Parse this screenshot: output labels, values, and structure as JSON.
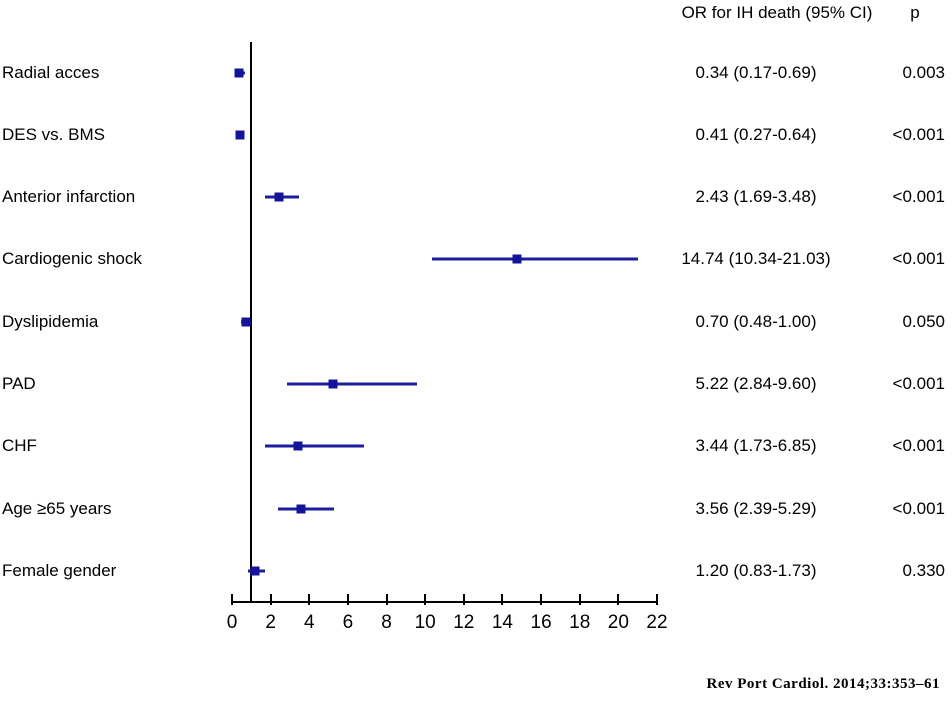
{
  "header": {
    "or_col": "OR for IH death (95% CI)",
    "p_col": "p"
  },
  "footer": {
    "citation": "Rev Port Cardiol. 2014;33:353–61"
  },
  "colors": {
    "ci_line": "#1c1c9e",
    "marker": "#14149b",
    "axis": "#000000"
  },
  "chart_data": {
    "type": "forest",
    "title": "OR for IH death (95% CI)",
    "xlabel": "",
    "xlim": [
      0,
      22
    ],
    "x_ticks": [
      0,
      2,
      4,
      6,
      8,
      10,
      12,
      14,
      16,
      18,
      20,
      22
    ],
    "reference_line": 1,
    "rows": [
      {
        "label": "Radial acces",
        "or": 0.34,
        "ci_low": 0.17,
        "ci_high": 0.69,
        "or_text": "0.34 (0.17-0.69)",
        "p": "0.003"
      },
      {
        "label": "DES vs. BMS",
        "or": 0.41,
        "ci_low": 0.27,
        "ci_high": 0.64,
        "or_text": "0.41 (0.27-0.64)",
        "p": "<0.001"
      },
      {
        "label": "Anterior infarction",
        "or": 2.43,
        "ci_low": 1.69,
        "ci_high": 3.48,
        "or_text": "2.43 (1.69-3.48)",
        "p": "<0.001"
      },
      {
        "label": "Cardiogenic shock",
        "or": 14.74,
        "ci_low": 10.34,
        "ci_high": 21.03,
        "or_text": "14.74 (10.34-21.03)",
        "p": "<0.001"
      },
      {
        "label": "Dyslipidemia",
        "or": 0.7,
        "ci_low": 0.48,
        "ci_high": 1.0,
        "or_text": "0.70 (0.48-1.00)",
        "p": "0.050"
      },
      {
        "label": "PAD",
        "or": 5.22,
        "ci_low": 2.84,
        "ci_high": 9.6,
        "or_text": "5.22 (2.84-9.60)",
        "p": "<0.001"
      },
      {
        "label": "CHF",
        "or": 3.44,
        "ci_low": 1.73,
        "ci_high": 6.85,
        "or_text": "3.44 (1.73-6.85)",
        "p": "<0.001"
      },
      {
        "label": "Age ≥65 years",
        "or": 3.56,
        "ci_low": 2.39,
        "ci_high": 5.29,
        "or_text": "3.56 (2.39-5.29)",
        "p": "<0.001"
      },
      {
        "label": "Female gender",
        "or": 1.2,
        "ci_low": 0.83,
        "ci_high": 1.73,
        "or_text": "1.20 (0.83-1.73)",
        "p": "0.330"
      }
    ]
  }
}
